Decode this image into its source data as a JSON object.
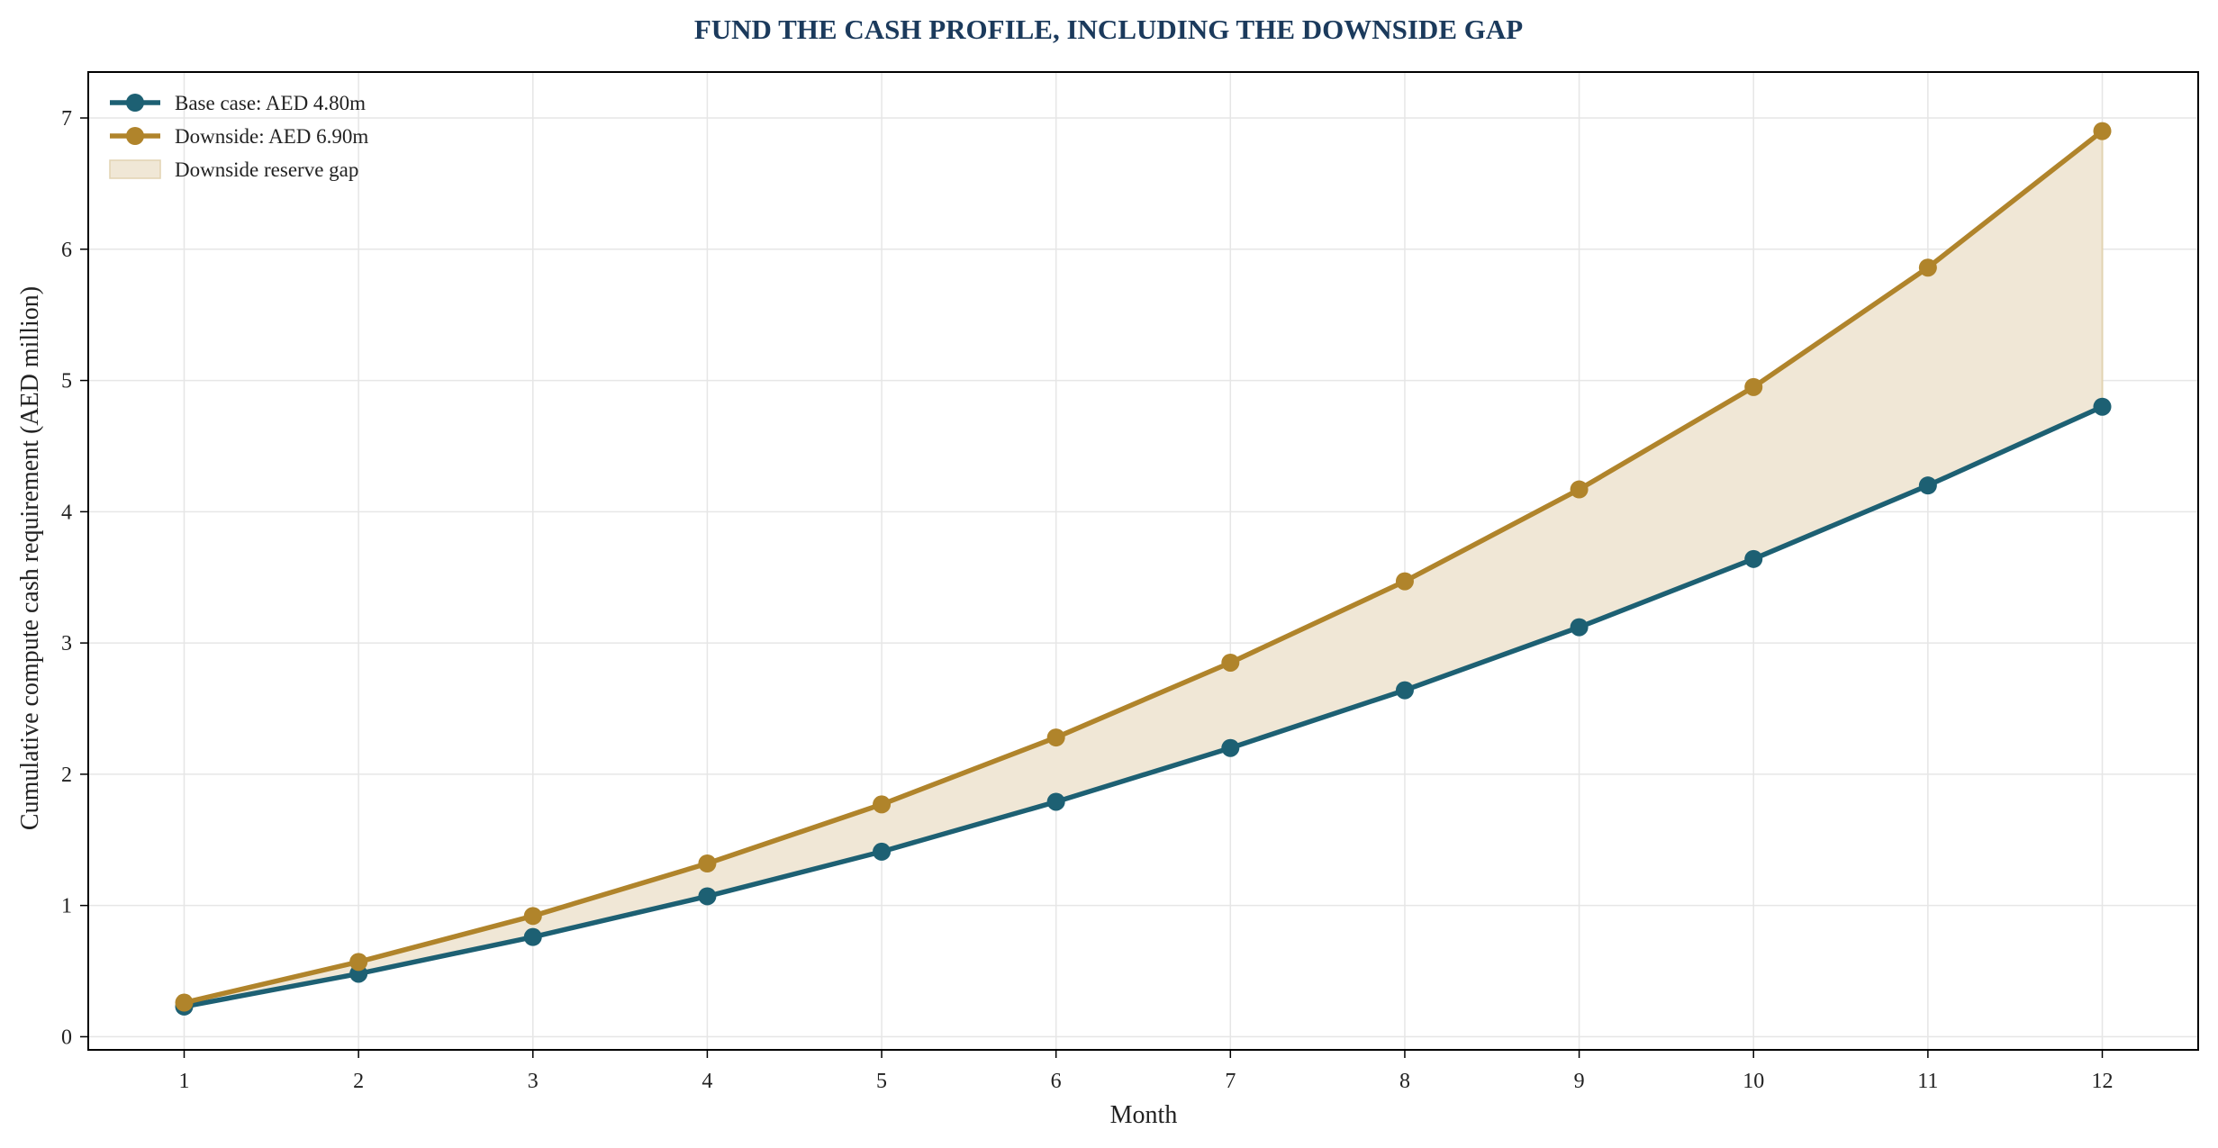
{
  "chart_data": {
    "type": "line",
    "title": "FUND THE CASH PROFILE, INCLUDING THE DOWNSIDE GAP",
    "xlabel": "Month",
    "ylabel": "Cumulative compute cash requirement (AED million)",
    "x": [
      1,
      2,
      3,
      4,
      5,
      6,
      7,
      8,
      9,
      10,
      11,
      12
    ],
    "xlim": [
      0.45,
      12.55
    ],
    "ylim": [
      -0.1,
      7.35
    ],
    "x_ticks": [
      1,
      2,
      3,
      4,
      5,
      6,
      7,
      8,
      9,
      10,
      11,
      12
    ],
    "y_ticks": [
      0,
      1,
      2,
      3,
      4,
      5,
      6,
      7
    ],
    "grid": true,
    "legend_position": "top-left",
    "series": [
      {
        "name": "Base case: AED 4.80m",
        "color": "#1d6073",
        "values": [
          0.23,
          0.48,
          0.76,
          1.07,
          1.41,
          1.79,
          2.2,
          2.64,
          3.12,
          3.64,
          4.2,
          4.8
        ]
      },
      {
        "name": "Downside: AED 6.90m",
        "color": "#b0842b",
        "values": [
          0.26,
          0.57,
          0.92,
          1.32,
          1.77,
          2.28,
          2.85,
          3.47,
          4.17,
          4.95,
          5.86,
          6.9
        ]
      }
    ],
    "fill_between": {
      "name": "Downside reserve gap",
      "color": "#f0e7d6",
      "edge_color": "#e2d3b2"
    }
  },
  "colors": {
    "title": "#1b3a5c",
    "axis": "#000000",
    "grid": "#e6e6e6"
  }
}
